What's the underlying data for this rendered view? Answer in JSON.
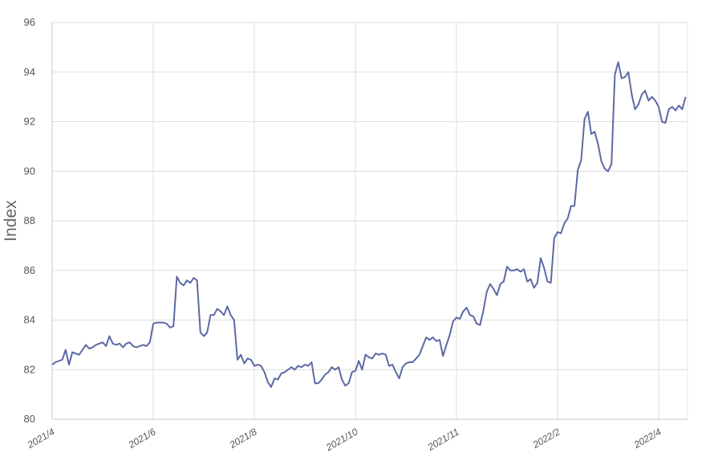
{
  "chart_data": {
    "type": "line",
    "ylabel": "Index",
    "color": "#5c69a6",
    "grid": true,
    "ylim": [
      80,
      96
    ],
    "yticks": [
      80,
      82,
      84,
      86,
      88,
      90,
      92,
      94,
      96
    ],
    "categories": [
      "2021/4",
      null,
      null,
      null,
      null,
      null,
      null,
      null,
      null,
      null,
      null,
      null,
      null,
      null,
      null,
      null,
      null,
      null,
      null,
      null,
      null,
      null,
      null,
      null,
      null,
      null,
      null,
      null,
      null,
      null,
      "2021/6",
      null,
      null,
      null,
      null,
      null,
      null,
      null,
      null,
      null,
      null,
      null,
      null,
      null,
      null,
      null,
      null,
      null,
      null,
      null,
      null,
      null,
      null,
      null,
      null,
      null,
      null,
      null,
      null,
      null,
      "2021/8",
      null,
      null,
      null,
      null,
      null,
      null,
      null,
      null,
      null,
      null,
      null,
      null,
      null,
      null,
      null,
      null,
      null,
      null,
      null,
      null,
      null,
      null,
      null,
      null,
      null,
      null,
      null,
      null,
      null,
      "2021/10",
      null,
      null,
      null,
      null,
      null,
      null,
      null,
      null,
      null,
      null,
      null,
      null,
      null,
      null,
      null,
      null,
      null,
      null,
      null,
      null,
      null,
      null,
      null,
      null,
      null,
      null,
      null,
      null,
      null,
      "2021/11",
      null,
      null,
      null,
      null,
      null,
      null,
      null,
      null,
      null,
      null,
      null,
      null,
      null,
      null,
      null,
      null,
      null,
      null,
      null,
      null,
      null,
      null,
      null,
      null,
      null,
      null,
      null,
      null,
      null,
      "2022/2",
      null,
      null,
      null,
      null,
      null,
      null,
      null,
      null,
      null,
      null,
      null,
      null,
      null,
      null,
      null,
      null,
      null,
      null,
      null,
      null,
      null,
      null,
      null,
      null,
      null,
      null,
      null,
      null,
      null,
      "2022/4",
      null,
      null,
      null,
      null,
      null,
      null,
      null,
      null
    ],
    "values": [
      82.2,
      82.3,
      82.35,
      82.4,
      82.8,
      82.2,
      82.7,
      82.65,
      82.6,
      82.8,
      83.0,
      82.85,
      82.9,
      83.0,
      83.05,
      83.1,
      82.95,
      83.35,
      83.05,
      83.0,
      83.05,
      82.9,
      83.05,
      83.1,
      82.95,
      82.9,
      82.95,
      83.0,
      82.95,
      83.1,
      83.85,
      83.9,
      83.9,
      83.9,
      83.85,
      83.7,
      83.75,
      85.75,
      85.5,
      85.4,
      85.6,
      85.5,
      85.7,
      85.6,
      83.5,
      83.35,
      83.5,
      84.2,
      84.2,
      84.45,
      84.35,
      84.2,
      84.55,
      84.2,
      84.0,
      82.4,
      82.6,
      82.25,
      82.45,
      82.4,
      82.15,
      82.2,
      82.15,
      81.9,
      81.5,
      81.3,
      81.65,
      81.6,
      81.85,
      81.9,
      82.0,
      82.1,
      82.0,
      82.15,
      82.1,
      82.2,
      82.15,
      82.3,
      81.45,
      81.45,
      81.6,
      81.8,
      81.9,
      82.1,
      82.0,
      82.1,
      81.6,
      81.35,
      81.45,
      81.9,
      81.95,
      82.35,
      82.0,
      82.6,
      82.5,
      82.45,
      82.65,
      82.6,
      82.65,
      82.6,
      82.15,
      82.2,
      81.9,
      81.65,
      82.1,
      82.25,
      82.3,
      82.3,
      82.45,
      82.6,
      82.95,
      83.3,
      83.2,
      83.3,
      83.15,
      83.2,
      82.55,
      83.0,
      83.4,
      83.95,
      84.1,
      84.05,
      84.35,
      84.5,
      84.2,
      84.15,
      83.85,
      83.8,
      84.4,
      85.15,
      85.45,
      85.25,
      85.0,
      85.45,
      85.55,
      86.15,
      86.0,
      86.0,
      86.05,
      85.95,
      86.05,
      85.55,
      85.65,
      85.3,
      85.5,
      86.5,
      86.1,
      85.55,
      85.5,
      87.3,
      87.55,
      87.5,
      87.9,
      88.1,
      88.6,
      88.6,
      90.05,
      90.45,
      92.1,
      92.4,
      91.5,
      91.6,
      91.1,
      90.4,
      90.1,
      90.0,
      90.3,
      93.9,
      94.4,
      93.75,
      93.8,
      94.0,
      93.1,
      92.5,
      92.7,
      93.1,
      93.25,
      92.85,
      93.0,
      92.85,
      92.6,
      92.0,
      91.95,
      92.5,
      92.6,
      92.45,
      92.65,
      92.5,
      93.0
    ]
  }
}
